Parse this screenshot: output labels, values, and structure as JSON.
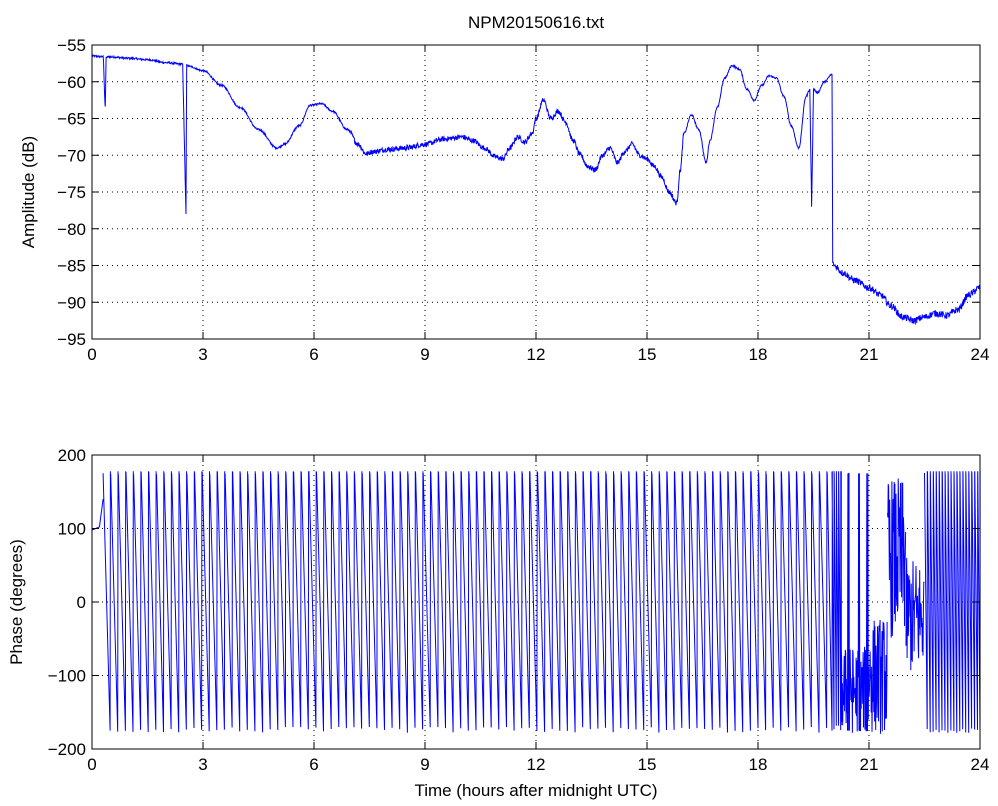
{
  "chart_data": [
    {
      "type": "line",
      "title": "NPM20150616.txt",
      "xlabel": "",
      "ylabel": "Amplitude (dB)",
      "xlim": [
        0,
        24
      ],
      "ylim": [
        -95,
        -55
      ],
      "xticks": [
        0,
        3,
        6,
        9,
        12,
        15,
        18,
        21,
        24
      ],
      "yticks": [
        -55,
        -60,
        -65,
        -70,
        -75,
        -80,
        -85,
        -90,
        -95
      ],
      "grid": true,
      "color": "#0000ff",
      "series": [
        {
          "x": [
            0,
            0.3,
            0.36,
            0.38,
            0.45,
            1.0,
            1.5,
            2.0,
            2.45,
            2.54,
            2.56,
            2.62,
            3.0,
            3.5,
            4.0,
            4.5,
            5.0,
            5.2,
            5.6,
            5.9,
            6.2,
            6.5,
            6.9,
            7.2,
            7.4,
            7.6,
            8.0,
            8.5,
            9.0,
            9.5,
            10.0,
            10.3,
            10.6,
            10.9,
            11.1,
            11.3,
            11.5,
            11.7,
            11.9,
            12.0,
            12.2,
            12.4,
            12.6,
            12.8,
            13.0,
            13.2,
            13.4,
            13.6,
            13.8,
            14.0,
            14.2,
            14.4,
            14.6,
            14.8,
            15.0,
            15.2,
            15.4,
            15.6,
            15.8,
            15.9,
            16.0,
            16.2,
            16.4,
            16.6,
            16.7,
            16.9,
            17.1,
            17.3,
            17.5,
            17.7,
            17.9,
            18.1,
            18.3,
            18.5,
            18.7,
            18.9,
            19.1,
            19.3,
            19.4,
            19.45,
            19.5,
            19.6,
            19.8,
            20.0,
            20.02,
            20.05,
            20.3,
            20.6,
            21.0,
            21.3,
            21.6,
            21.9,
            22.2,
            22.5,
            22.8,
            23.1,
            23.4,
            23.7,
            24.0
          ],
          "y": [
            -56.5,
            -56.6,
            -63.5,
            -56.7,
            -56.6,
            -56.8,
            -57.0,
            -57.4,
            -57.6,
            -78.0,
            -57.7,
            -57.9,
            -58.5,
            -60.5,
            -63.5,
            -66.5,
            -69.0,
            -68.5,
            -66.0,
            -63.2,
            -63.0,
            -64.0,
            -66.5,
            -68.5,
            -69.8,
            -69.5,
            -69.2,
            -69.0,
            -68.5,
            -67.8,
            -67.5,
            -68.0,
            -69.0,
            -70.2,
            -70.5,
            -69.0,
            -67.5,
            -68.2,
            -67.0,
            -65.0,
            -62.5,
            -65.0,
            -64.0,
            -65.5,
            -68.0,
            -70.0,
            -71.5,
            -72.0,
            -70.0,
            -69.0,
            -71.0,
            -69.5,
            -68.5,
            -70.0,
            -70.5,
            -71.5,
            -73.0,
            -75.0,
            -76.5,
            -72.0,
            -67.0,
            -64.5,
            -66.5,
            -71.0,
            -68.0,
            -63.5,
            -59.5,
            -57.8,
            -58.3,
            -61.0,
            -62.5,
            -60.5,
            -59.2,
            -59.5,
            -62.0,
            -66.0,
            -69.0,
            -62.0,
            -61.0,
            -77.0,
            -61.0,
            -61.5,
            -60.0,
            -59.0,
            -84.5,
            -85.0,
            -86.0,
            -87.0,
            -88.0,
            -89.0,
            -90.5,
            -92.0,
            -92.5,
            -92.0,
            -91.5,
            -91.8,
            -91.0,
            -89.0,
            -88.0
          ]
        }
      ]
    },
    {
      "type": "line",
      "title": "",
      "xlabel": "Time (hours after midnight UTC)",
      "ylabel": "Phase (degrees)",
      "xlim": [
        0,
        24
      ],
      "ylim": [
        -200,
        200
      ],
      "xticks": [
        0,
        3,
        6,
        9,
        12,
        15,
        18,
        21,
        24
      ],
      "yticks": [
        200,
        100,
        0,
        -100,
        -200
      ],
      "grid": true,
      "color": "#0000ff",
      "series": [
        {
          "phase_wrap_segments": [
            {
              "x_start": 0.0,
              "x_end": 0.2,
              "y_start": 98,
              "y_end": 102
            },
            {
              "x_start": 0.2,
              "x_end": 0.3,
              "y_start": 102,
              "y_end": 140
            },
            {
              "x_start": 0.3,
              "x_end": 20.0,
              "period_hours": 0.206,
              "y_min": -178,
              "y_max": 178
            },
            {
              "x_start": 20.0,
              "x_end": 20.25,
              "period_hours": 0.06,
              "y_min": -175,
              "y_max": 178
            },
            {
              "x_start": 20.25,
              "x_end": 21.0,
              "noise_center": -120,
              "noise_amp": 60,
              "bursts": [
                20.45,
                20.75,
                20.95
              ]
            },
            {
              "x_start": 21.0,
              "x_end": 21.5,
              "noise_center": -100,
              "noise_amp": 80
            },
            {
              "x_start": 21.5,
              "x_end": 22.0,
              "noise_center": 60,
              "noise_amp": 110
            },
            {
              "x_start": 22.0,
              "x_end": 22.5,
              "noise_center": -20,
              "noise_amp": 80
            },
            {
              "x_start": 22.5,
              "x_end": 24.0,
              "period_hours": 0.08,
              "y_min": -178,
              "y_max": 178
            }
          ]
        }
      ]
    }
  ]
}
